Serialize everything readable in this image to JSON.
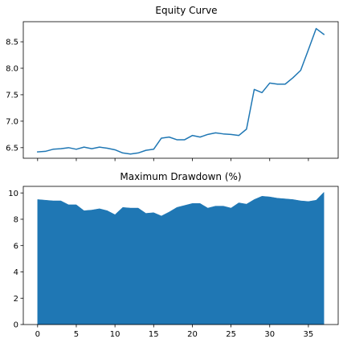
{
  "chart_data": [
    {
      "type": "line",
      "title": "Equity Curve",
      "xlabel": "",
      "ylabel": "",
      "xlim": [
        -1.85,
        38.85
      ],
      "ylim": [
        6.3,
        8.88
      ],
      "yticks": [
        6.5,
        7.0,
        7.5,
        8.0,
        8.5
      ],
      "ytick_labels": [
        "6.5",
        "7.0",
        "7.5",
        "8.0",
        "8.5"
      ],
      "xticks": [
        0,
        5,
        10,
        15,
        20,
        25,
        30,
        35
      ],
      "x_tick_labels_visible": false,
      "grid": false,
      "color": "#1f77b4",
      "x": [
        0,
        1,
        2,
        3,
        4,
        5,
        6,
        7,
        8,
        9,
        10,
        11,
        12,
        13,
        14,
        15,
        16,
        17,
        18,
        19,
        20,
        21,
        22,
        23,
        24,
        25,
        26,
        27,
        28,
        29,
        30,
        31,
        32,
        33,
        34,
        35,
        36,
        37
      ],
      "y": [
        6.42,
        6.43,
        6.47,
        6.48,
        6.5,
        6.47,
        6.51,
        6.48,
        6.51,
        6.49,
        6.46,
        6.4,
        6.38,
        6.4,
        6.45,
        6.47,
        6.68,
        6.7,
        6.65,
        6.65,
        6.73,
        6.7,
        6.75,
        6.78,
        6.76,
        6.75,
        6.73,
        6.85,
        7.6,
        7.54,
        7.72,
        7.7,
        7.7,
        7.82,
        7.96,
        8.35,
        8.75,
        8.64
      ]
    },
    {
      "type": "area",
      "title": "Maximum Drawdown (%)",
      "xlabel": "",
      "ylabel": "",
      "xlim": [
        -1.85,
        38.85
      ],
      "ylim": [
        0,
        10.5
      ],
      "yticks": [
        0,
        2,
        4,
        6,
        8,
        10
      ],
      "ytick_labels": [
        "0",
        "2",
        "4",
        "6",
        "8",
        "10"
      ],
      "xticks": [
        0,
        5,
        10,
        15,
        20,
        25,
        30,
        35
      ],
      "xtick_labels": [
        "0",
        "5",
        "10",
        "15",
        "20",
        "25",
        "30",
        "35"
      ],
      "grid": false,
      "color": "#1f77b4",
      "x": [
        0,
        1,
        2,
        3,
        4,
        5,
        6,
        7,
        8,
        9,
        10,
        11,
        12,
        13,
        14,
        15,
        16,
        17,
        18,
        19,
        20,
        21,
        22,
        23,
        24,
        25,
        26,
        27,
        28,
        29,
        30,
        31,
        32,
        33,
        34,
        35,
        36,
        37
      ],
      "y": [
        9.5,
        9.45,
        9.4,
        9.4,
        9.1,
        9.1,
        8.65,
        8.7,
        8.8,
        8.65,
        8.35,
        8.9,
        8.85,
        8.85,
        8.45,
        8.5,
        8.25,
        8.55,
        8.9,
        9.05,
        9.2,
        9.2,
        8.85,
        9.0,
        9.0,
        8.85,
        9.25,
        9.15,
        9.5,
        9.75,
        9.7,
        9.6,
        9.55,
        9.5,
        9.4,
        9.35,
        9.45,
        10.05
      ]
    }
  ]
}
